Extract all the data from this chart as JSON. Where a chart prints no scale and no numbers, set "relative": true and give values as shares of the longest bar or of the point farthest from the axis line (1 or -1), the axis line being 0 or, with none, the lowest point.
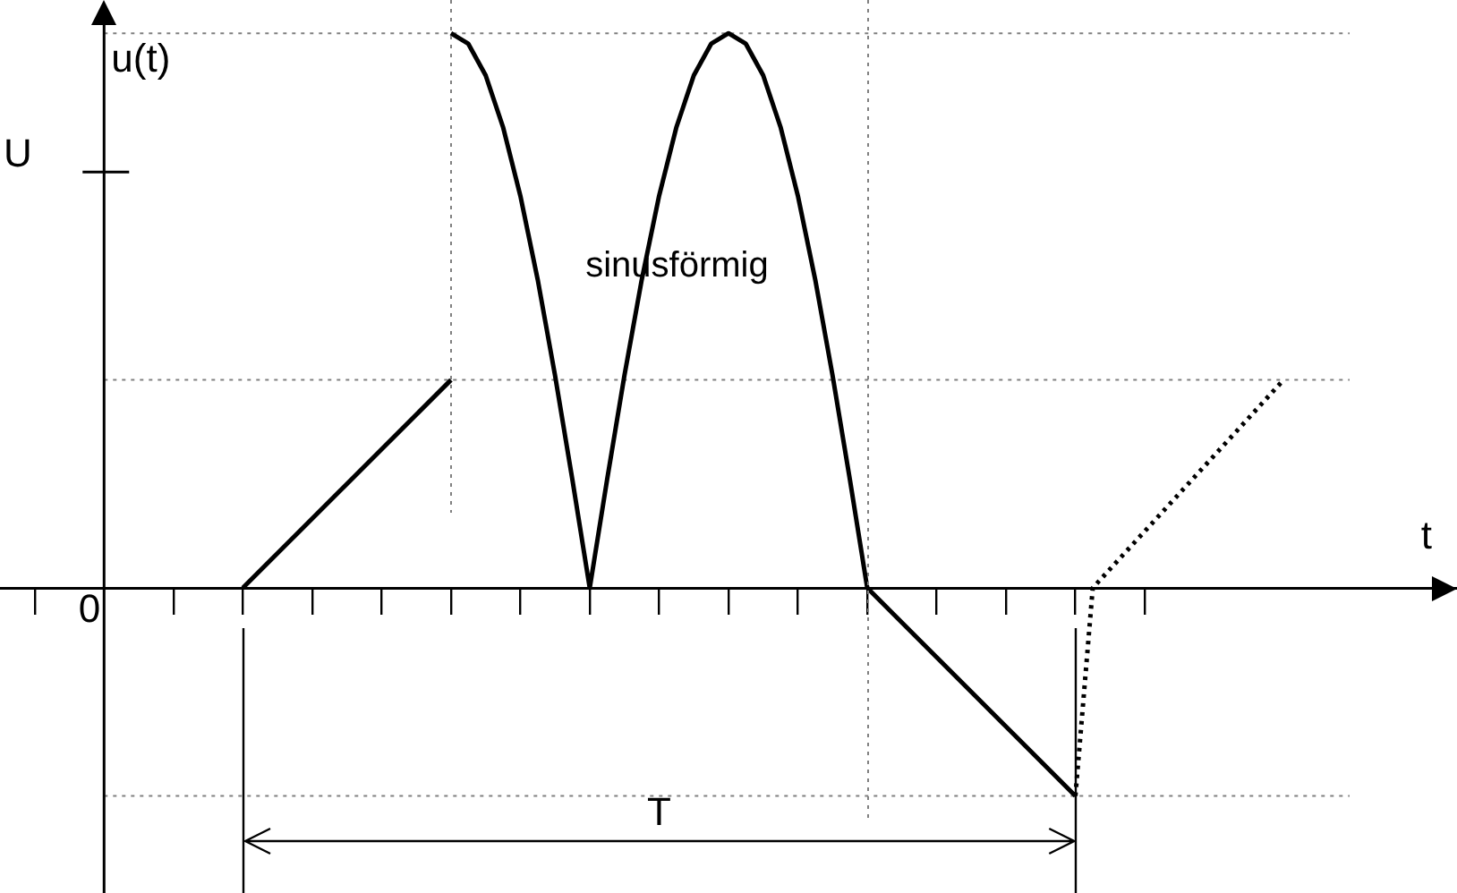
{
  "chart_data": {
    "type": "line",
    "xlabel": "t",
    "ylabel": "u(t)",
    "relative": true,
    "marker": "none",
    "legend": false,
    "categories": [
      null,
      null,
      null,
      null,
      null,
      null,
      null,
      null,
      null,
      null,
      null,
      null,
      null,
      null,
      null,
      null,
      null,
      null,
      null,
      null,
      null,
      null,
      null,
      null,
      null,
      null,
      null,
      null,
      null,
      null,
      null,
      null,
      null,
      null,
      null,
      null,
      null,
      null,
      null,
      null,
      null,
      null,
      null,
      null,
      null,
      null,
      null,
      null,
      null,
      null,
      null,
      null,
      null,
      null,
      null,
      null,
      null,
      null,
      null,
      null,
      null,
      null,
      null,
      null,
      null,
      null,
      null,
      null,
      null,
      null,
      null,
      null,
      null,
      null,
      null,
      null,
      null,
      null,
      null,
      null,
      null,
      null,
      null,
      null,
      null
    ],
    "series": [
      {
        "color": "#000000",
        "values": [
          null,
          null,
          null,
          null,
          null,
          null,
          null,
          null,
          null,
          null,
          null,
          null,
          null,
          null,
          0,
          null,
          null,
          null,
          null,
          null,
          null,
          null,
          null,
          null,
          null,
          null,
          0.375,
          null,
          null,
          null,
          null,
          null,
          null,
          null,
          null,
          null,
          null,
          null,
          null,
          null,
          null,
          null,
          null,
          null,
          null,
          null,
          null,
          null,
          null,
          null,
          null,
          null,
          null,
          null,
          null,
          null,
          null,
          null,
          null,
          null,
          null,
          null,
          null,
          null,
          null,
          null,
          null,
          null,
          null,
          null,
          null,
          null,
          null,
          null,
          null,
          null,
          null,
          null,
          null,
          null,
          null,
          null,
          null,
          null,
          null
        ]
      },
      {
        "color": "#000000",
        "values": [
          null,
          null,
          null,
          null,
          null,
          null,
          null,
          null,
          null,
          null,
          null,
          null,
          null,
          null,
          null,
          null,
          null,
          null,
          null,
          null,
          null,
          null,
          null,
          null,
          null,
          null,
          1,
          0.981,
          0.924,
          0.831,
          0.707,
          0.556,
          0.383,
          0.195,
          0,
          0.195,
          0.383,
          0.556,
          0.707,
          0.831,
          0.924,
          0.981,
          1,
          0.981,
          0.924,
          0.831,
          0.707,
          0.556,
          0.383,
          0.195,
          0,
          null,
          null,
          null,
          null,
          null,
          null,
          null,
          null,
          null,
          null,
          null,
          null,
          null,
          null,
          null,
          null,
          null,
          null,
          null,
          null,
          null,
          null,
          null,
          null,
          null,
          null,
          null,
          null,
          null,
          null,
          null,
          null,
          null,
          null
        ]
      },
      {
        "color": "#000000",
        "values": [
          null,
          null,
          null,
          null,
          null,
          null,
          null,
          null,
          null,
          null,
          null,
          null,
          null,
          null,
          null,
          null,
          null,
          null,
          null,
          null,
          null,
          null,
          null,
          null,
          null,
          null,
          null,
          null,
          null,
          null,
          null,
          null,
          null,
          null,
          null,
          null,
          null,
          null,
          null,
          null,
          null,
          null,
          null,
          null,
          null,
          null,
          null,
          null,
          null,
          null,
          0,
          null,
          null,
          null,
          null,
          null,
          null,
          null,
          null,
          null,
          null,
          null,
          -0.375,
          null,
          null,
          null,
          null,
          null,
          null,
          null,
          null,
          null,
          null,
          null,
          null,
          null,
          null,
          null,
          null,
          null,
          null,
          null,
          null,
          null,
          null
        ]
      },
      {
        "color": "#000000",
        "line_style": "dotted",
        "values": [
          null,
          null,
          null,
          null,
          null,
          null,
          null,
          null,
          null,
          null,
          null,
          null,
          null,
          null,
          null,
          null,
          null,
          null,
          null,
          null,
          null,
          null,
          null,
          null,
          null,
          null,
          null,
          null,
          null,
          null,
          null,
          null,
          null,
          null,
          null,
          null,
          null,
          null,
          null,
          null,
          null,
          null,
          null,
          null,
          null,
          null,
          null,
          null,
          null,
          null,
          null,
          null,
          null,
          null,
          null,
          null,
          null,
          null,
          null,
          null,
          null,
          null,
          -0.375,
          0,
          null,
          null,
          null,
          null,
          null,
          null,
          null,
          null,
          null,
          null,
          0.375,
          null,
          null,
          null,
          null,
          null,
          null,
          null,
          null,
          null,
          null
        ]
      }
    ],
    "ref_lines": [
      {
        "axis": "y",
        "value": 1,
        "color": "#808080",
        "line_style": "dotted"
      },
      {
        "axis": "y",
        "value": 0.375,
        "color": "#808080",
        "line_style": "dotted"
      },
      {
        "axis": "y",
        "value": -0.375,
        "color": "#808080",
        "line_style": "dotted"
      }
    ],
    "annotations": [
      "T",
      "U",
      "0",
      "sinusförmig"
    ]
  }
}
